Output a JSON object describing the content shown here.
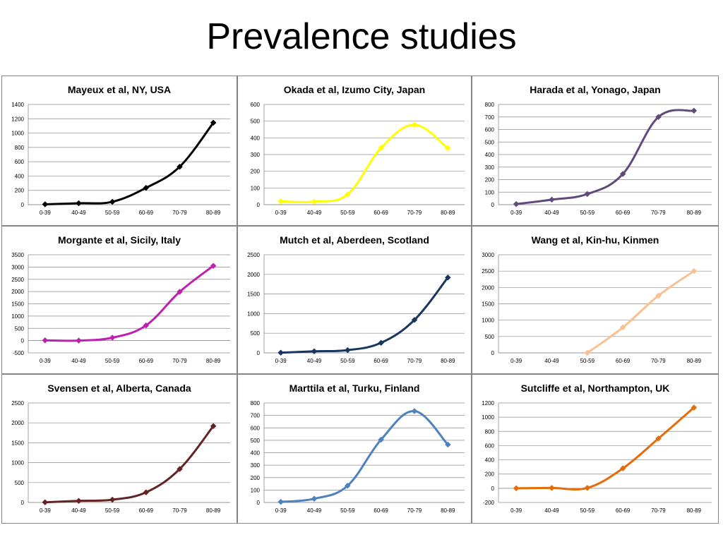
{
  "slide": {
    "title": "Prevalence studies"
  },
  "chart_data": [
    {
      "type": "line",
      "title": "Mayeux et al, NY, USA",
      "categories": [
        "0-39",
        "40-49",
        "50-59",
        "60-69",
        "70-79",
        "80-89"
      ],
      "yticks": [
        0,
        200,
        400,
        600,
        800,
        1000,
        1200,
        1400
      ],
      "ylim": [
        0,
        1400
      ],
      "color": "#000000",
      "series": [
        {
          "values": [
            5,
            20,
            40,
            235,
            530,
            1145
          ]
        }
      ]
    },
    {
      "type": "line",
      "title": "Okada et al, Izumo City, Japan",
      "categories": [
        "0-39",
        "40-49",
        "50-59",
        "60-69",
        "70-79",
        "80-89"
      ],
      "yticks": [
        0,
        100,
        200,
        300,
        400,
        500,
        600
      ],
      "ylim": [
        0,
        600
      ],
      "color": "#ffff00",
      "series": [
        {
          "values": [
            20,
            18,
            62,
            340,
            478,
            338
          ]
        }
      ]
    },
    {
      "type": "line",
      "title": "Harada et al, Yonago, Japan",
      "categories": [
        "0-39",
        "40-49",
        "50-59",
        "60-69",
        "70-79",
        "80-89"
      ],
      "yticks": [
        0,
        100,
        200,
        300,
        400,
        500,
        600,
        700,
        800
      ],
      "ylim": [
        0,
        800
      ],
      "color": "#604a7b",
      "series": [
        {
          "values": [
            5,
            40,
            85,
            245,
            700,
            750
          ]
        }
      ]
    },
    {
      "type": "line",
      "title": "Morgante et al, Sicily, Italy",
      "categories": [
        "0-39",
        "40-49",
        "50-59",
        "60-69",
        "70-79",
        "80-89"
      ],
      "yticks": [
        -500,
        0,
        500,
        1000,
        1500,
        2000,
        2500,
        3000,
        3500
      ],
      "ylim": [
        -500,
        3500
      ],
      "color": "#c020b0",
      "series": [
        {
          "values": [
            10,
            0,
            120,
            620,
            1990,
            3050
          ]
        }
      ]
    },
    {
      "type": "line",
      "title": "Mutch et al, Aberdeen, Scotland",
      "categories": [
        "0-39",
        "40-49",
        "50-59",
        "60-69",
        "70-79",
        "80-89"
      ],
      "yticks": [
        0,
        500,
        1000,
        1500,
        2000,
        2500
      ],
      "ylim": [
        0,
        2500
      ],
      "color": "#17375e",
      "series": [
        {
          "values": [
            5,
            40,
            70,
            255,
            840,
            1920
          ]
        }
      ]
    },
    {
      "type": "line",
      "title": "Wang et al, Kin-hu, Kinmen",
      "categories": [
        "0-39",
        "40-49",
        "50-59",
        "60-69",
        "70-79",
        "80-89"
      ],
      "yticks": [
        0,
        500,
        1000,
        1500,
        2000,
        2500,
        3000
      ],
      "ylim": [
        0,
        3000
      ],
      "color": "#fac090",
      "series": [
        {
          "values": [
            null,
            null,
            0,
            780,
            1750,
            2500
          ]
        }
      ]
    },
    {
      "type": "line",
      "title": "Svensen et al, Alberta, Canada",
      "categories": [
        "0-39",
        "40-49",
        "50-59",
        "60-69",
        "70-79",
        "80-89"
      ],
      "yticks": [
        0,
        500,
        1000,
        1500,
        2000,
        2500
      ],
      "ylim": [
        0,
        2500
      ],
      "color": "#632523",
      "series": [
        {
          "values": [
            5,
            40,
            70,
            255,
            840,
            1920
          ]
        }
      ]
    },
    {
      "type": "line",
      "title": "Marttila et al, Turku, Finland",
      "categories": [
        "0-39",
        "40-49",
        "50-59",
        "60-69",
        "70-79",
        "80-89"
      ],
      "yticks": [
        0,
        100,
        200,
        300,
        400,
        500,
        600,
        700,
        800
      ],
      "ylim": [
        0,
        800
      ],
      "color": "#4f81bd",
      "series": [
        {
          "values": [
            5,
            30,
            135,
            505,
            735,
            465
          ]
        }
      ]
    },
    {
      "type": "line",
      "title": "Sutcliffe et al, Northampton, UK",
      "categories": [
        "0-39",
        "40-49",
        "50-59",
        "60-69",
        "70-79",
        "80-89"
      ],
      "yticks": [
        -200,
        0,
        200,
        400,
        600,
        800,
        1000,
        1200
      ],
      "ylim": [
        -200,
        1200
      ],
      "color": "#e46c0a",
      "series": [
        {
          "values": [
            0,
            5,
            5,
            280,
            700,
            1135
          ]
        }
      ]
    }
  ]
}
